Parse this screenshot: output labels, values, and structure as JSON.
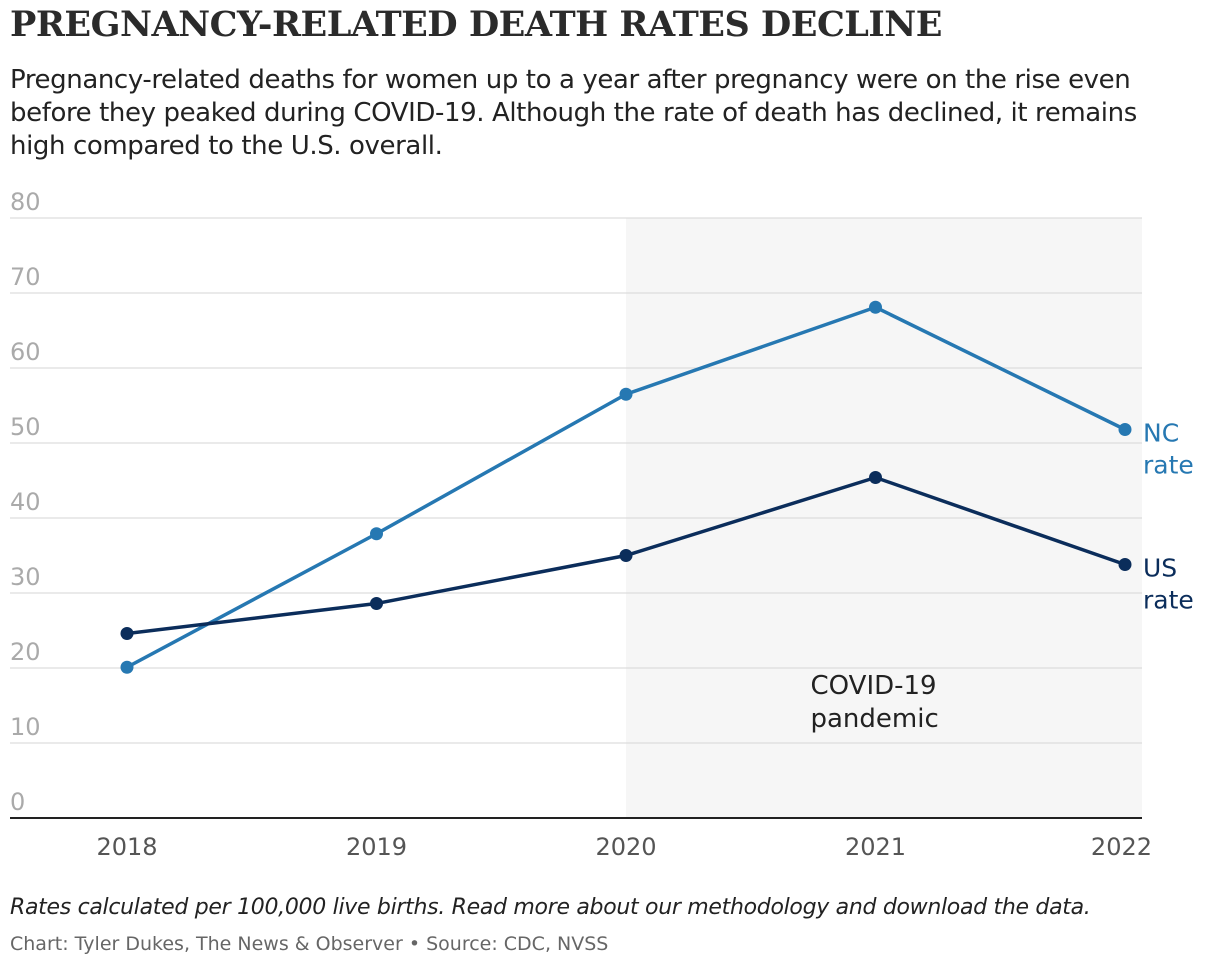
{
  "title": "PREGNANCY-RELATED DEATH RATES DECLINE",
  "subtitle": "Pregnancy-related deaths for women up to a year after pregnancy were on the rise even before they peaked during COVID-19. Although the rate of death has declined, it remains high compared to the U.S. overall.",
  "footnote": "Rates calculated per 100,000 live births. Read more about our methodology and download the data.",
  "credit": "Chart: Tyler Dukes, The News & Observer • Source: CDC, NVSS",
  "chart_data": {
    "type": "line",
    "title": "PREGNANCY-RELATED DEATH RATES DECLINE",
    "x": [
      "2018",
      "2019",
      "2020",
      "2021",
      "2022"
    ],
    "ylim": [
      0,
      80
    ],
    "yticks": [
      0,
      10,
      20,
      30,
      40,
      50,
      60,
      70,
      80
    ],
    "grid": true,
    "series": [
      {
        "name": "NC rate",
        "label_lines": [
          "NC",
          "rate"
        ],
        "color": "#2678b2",
        "values": [
          20.1,
          37.9,
          56.5,
          68.1,
          51.8
        ]
      },
      {
        "name": "US rate",
        "label_lines": [
          "US",
          "rate"
        ],
        "color": "#0b2d5b",
        "values": [
          24.6,
          28.6,
          35.0,
          45.4,
          33.8
        ]
      }
    ],
    "annotations": [
      {
        "type": "shaded_region",
        "x_start": "2020",
        "x_end": "2022",
        "text_lines": [
          "COVID-19",
          "pandemic"
        ],
        "color": "#f6f6f6"
      }
    ]
  }
}
